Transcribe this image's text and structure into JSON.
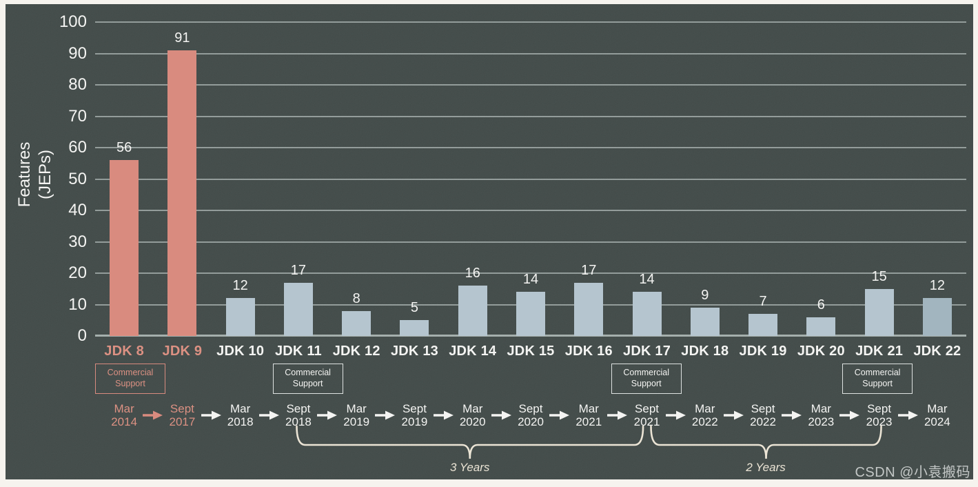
{
  "watermark": "CSDN @小袁搬码",
  "colors": {
    "page_bg": "#f6f3ee",
    "panel_bg": "#424b49",
    "grid_line": "#93a19d",
    "axis_text": "#f4f4f2",
    "highlight_text": "#dc9183",
    "default_bar": "#b5c5cf",
    "highlight_bar": "#d98b7f",
    "brace": "#ebe4d5",
    "watermark_text": "#c3c7c6"
  },
  "chart_data": {
    "type": "bar",
    "title": "",
    "ylabel_lines": [
      "Features",
      "(JEPs)"
    ],
    "xlabel": "",
    "ylim": [
      0,
      100
    ],
    "ytick_interval": 10,
    "yticks": [
      0,
      10,
      20,
      30,
      40,
      50,
      60,
      70,
      80,
      90,
      100
    ],
    "grid": "horizontal",
    "legend": "none",
    "categories": [
      "JDK 8",
      "JDK 9",
      "JDK 10",
      "JDK 11",
      "JDK 12",
      "JDK 13",
      "JDK 14",
      "JDK 15",
      "JDK 16",
      "JDK 17",
      "JDK 18",
      "JDK 19",
      "JDK 20",
      "JDK 21",
      "JDK 22"
    ],
    "values": [
      56,
      91,
      12,
      17,
      8,
      5,
      16,
      14,
      17,
      14,
      9,
      7,
      6,
      15,
      12
    ],
    "bar_colors": [
      "#d98b7f",
      "#d98b7f",
      "#b5c5cf",
      "#b5c5cf",
      "#b5c5cf",
      "#b5c5cf",
      "#b5c5cf",
      "#b5c5cf",
      "#b5c5cf",
      "#b5c5cf",
      "#b5c5cf",
      "#b5c5cf",
      "#b5c5cf",
      "#b5c5cf",
      "#a2b5bf"
    ],
    "highlight_indices": [
      0,
      1
    ],
    "release_dates": [
      {
        "month": "Mar",
        "year": "2014"
      },
      {
        "month": "Sept",
        "year": "2017"
      },
      {
        "month": "Mar",
        "year": "2018"
      },
      {
        "month": "Sept",
        "year": "2018"
      },
      {
        "month": "Mar",
        "year": "2019"
      },
      {
        "month": "Sept",
        "year": "2019"
      },
      {
        "month": "Mar",
        "year": "2020"
      },
      {
        "month": "Sept",
        "year": "2020"
      },
      {
        "month": "Mar",
        "year": "2021"
      },
      {
        "month": "Sept",
        "year": "2021"
      },
      {
        "month": "Mar",
        "year": "2022"
      },
      {
        "month": "Sept",
        "year": "2022"
      },
      {
        "month": "Mar",
        "year": "2023"
      },
      {
        "month": "Sept",
        "year": "2023"
      },
      {
        "month": "Mar",
        "year": "2024"
      }
    ],
    "commercial_support": {
      "label_lines": [
        "Commercial",
        "Support"
      ],
      "indices": [
        0,
        3,
        9,
        13
      ]
    },
    "cadence_braces": [
      {
        "label": "3 Years",
        "from_index": 3,
        "to_index": 9
      },
      {
        "label": "2 Years",
        "from_index": 9,
        "to_index": 13
      }
    ]
  }
}
